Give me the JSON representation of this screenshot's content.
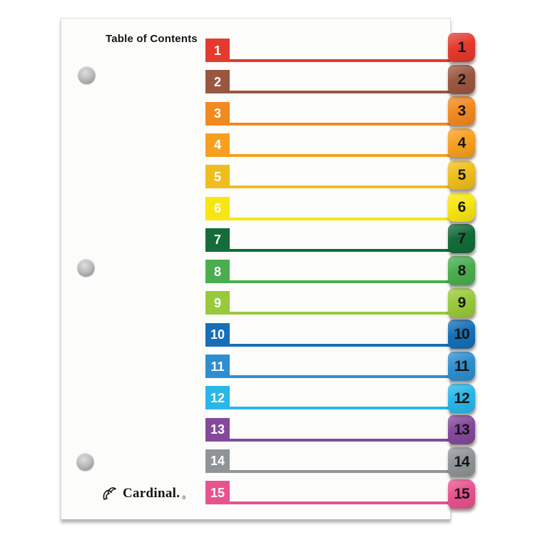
{
  "page": {
    "title": "Table of Contents",
    "brand": "Cardinal.",
    "brand_reg_mark": "®",
    "punch_holes": 3
  },
  "divider": {
    "items": [
      {
        "number": "1",
        "color": "#e43a2e"
      },
      {
        "number": "2",
        "color": "#9a5740"
      },
      {
        "number": "3",
        "color": "#f18a21"
      },
      {
        "number": "4",
        "color": "#f6a01f"
      },
      {
        "number": "5",
        "color": "#efbe1e"
      },
      {
        "number": "6",
        "color": "#f7e613"
      },
      {
        "number": "7",
        "color": "#136c39"
      },
      {
        "number": "8",
        "color": "#4aae4e"
      },
      {
        "number": "9",
        "color": "#99c93c"
      },
      {
        "number": "10",
        "color": "#176fb7"
      },
      {
        "number": "11",
        "color": "#2e8ecf"
      },
      {
        "number": "12",
        "color": "#29b6e9"
      },
      {
        "number": "13",
        "color": "#84499b"
      },
      {
        "number": "14",
        "color": "#8f9496"
      },
      {
        "number": "15",
        "color": "#e8538f"
      }
    ]
  }
}
